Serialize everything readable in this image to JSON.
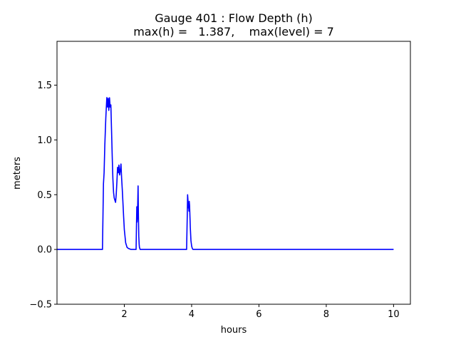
{
  "chart_data": {
    "type": "line",
    "title_line1": "Gauge 401 : Flow Depth (h)",
    "title_line2": "max(h) =   1.387,    max(level) = 7",
    "xlabel": "hours",
    "ylabel": "meters",
    "xlim": [
      0.0,
      10.5
    ],
    "ylim": [
      -0.5,
      1.9
    ],
    "x_ticks": [
      2,
      4,
      6,
      8,
      10
    ],
    "y_ticks": [
      -0.5,
      0.0,
      0.5,
      1.0,
      1.5
    ],
    "x_tick_labels": [
      "2",
      "4",
      "6",
      "8",
      "10"
    ],
    "y_tick_labels": [
      "−0.5",
      "0.0",
      "0.5",
      "1.0",
      "1.5"
    ],
    "grid": false,
    "colors": {
      "series": "#0000ff",
      "axes": "#000000",
      "background": "#ffffff"
    },
    "series": [
      {
        "x": [
          0.0,
          1.3,
          1.35,
          1.38,
          1.4,
          1.42,
          1.45,
          1.48,
          1.5,
          1.52,
          1.54,
          1.56,
          1.58,
          1.6,
          1.62,
          1.64,
          1.66,
          1.68,
          1.7,
          1.72,
          1.74,
          1.76,
          1.78,
          1.8,
          1.82,
          1.84,
          1.86,
          1.88,
          1.9,
          1.92,
          1.94,
          1.96,
          1.98,
          2.0,
          2.04,
          2.08,
          2.12,
          2.2,
          2.35,
          2.36,
          2.37,
          2.38,
          2.39,
          2.4,
          2.41,
          2.42,
          2.43,
          2.44,
          2.45,
          2.46,
          2.47,
          2.48,
          2.5,
          2.55,
          2.65,
          2.8,
          3.8,
          3.85,
          3.87,
          3.88,
          3.89,
          3.9,
          3.91,
          3.92,
          3.93,
          3.94,
          3.95,
          3.96,
          3.98,
          4.0,
          4.02,
          4.04,
          4.06,
          4.1,
          4.2,
          4.4,
          10.0
        ],
        "y": [
          0.0,
          0.0,
          0.0,
          0.6,
          0.7,
          0.95,
          1.2,
          1.387,
          1.3,
          1.38,
          1.27,
          1.385,
          1.3,
          1.32,
          1.1,
          0.85,
          0.65,
          0.52,
          0.47,
          0.45,
          0.43,
          0.5,
          0.62,
          0.75,
          0.7,
          0.77,
          0.68,
          0.72,
          0.78,
          0.65,
          0.55,
          0.42,
          0.3,
          0.18,
          0.06,
          0.02,
          0.01,
          0.0,
          0.0,
          0.2,
          0.39,
          0.25,
          0.3,
          0.45,
          0.58,
          0.3,
          0.12,
          0.05,
          0.02,
          0.01,
          0.0,
          0.0,
          0.0,
          0.0,
          0.0,
          0.0,
          0.0,
          0.0,
          0.3,
          0.5,
          0.45,
          0.38,
          0.42,
          0.35,
          0.44,
          0.4,
          0.3,
          0.2,
          0.08,
          0.03,
          0.01,
          0.0,
          0.0,
          0.0,
          0.0,
          0.0,
          0.0
        ]
      }
    ]
  }
}
